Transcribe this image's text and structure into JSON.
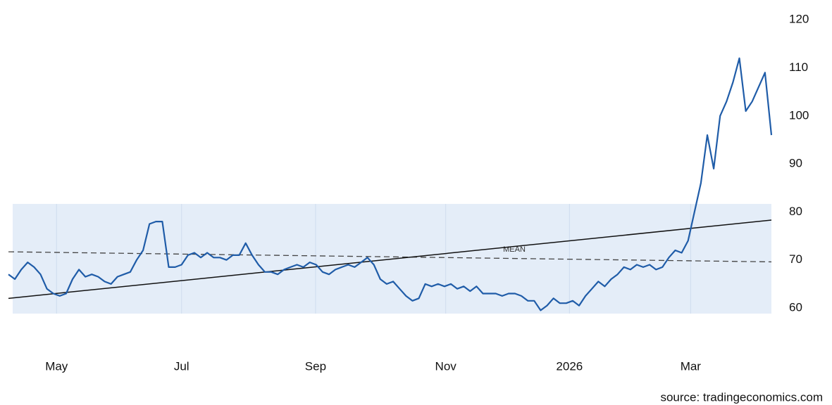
{
  "chart_data": {
    "type": "line",
    "series": [
      {
        "color": "#1f5ca8",
        "values": [
          67,
          66,
          68,
          69.5,
          68.5,
          67,
          64,
          63,
          62.5,
          63,
          66,
          68,
          66.5,
          67,
          66.5,
          65.5,
          65,
          66.5,
          67,
          67.5,
          70,
          72,
          77.5,
          78,
          78,
          68.5,
          68.5,
          69,
          71,
          71.5,
          70.5,
          71.5,
          70.5,
          70.5,
          70,
          71,
          71,
          73.5,
          71,
          69,
          67.5,
          67.5,
          67,
          68,
          68.5,
          69,
          68.5,
          69.5,
          69,
          67.5,
          67,
          68,
          68.5,
          69,
          68.5,
          69.5,
          70.5,
          69,
          66,
          65,
          65.5,
          64,
          62.5,
          61.5,
          62,
          65,
          64.5,
          65,
          64.5,
          65,
          64,
          64.5,
          63.5,
          64.5,
          63,
          63,
          63,
          62.5,
          63,
          63,
          62.5,
          61.5,
          61.5,
          59.5,
          60.5,
          62,
          61,
          61,
          61.5,
          60.5,
          62.5,
          64,
          65.5,
          64.5,
          66,
          67,
          68.5,
          68,
          69,
          68.5,
          69,
          68,
          68.5,
          70.5,
          72,
          71.5,
          74,
          80,
          86,
          96,
          89,
          100,
          103,
          107,
          112,
          101,
          103,
          106,
          109,
          96
        ]
      }
    ],
    "mean_line": {
      "label": "MEAN",
      "values": [
        71.7,
        69.6
      ]
    },
    "trend_line": {
      "values": [
        62,
        78.3
      ]
    },
    "xticks": [
      {
        "value": 7.5,
        "label": "May"
      },
      {
        "value": 27,
        "label": "Jul"
      },
      {
        "value": 47.9,
        "label": "Sep"
      },
      {
        "value": 68.2,
        "label": "Nov"
      },
      {
        "value": 87.5,
        "label": "2026"
      },
      {
        "value": 106.4,
        "label": "Mar"
      }
    ],
    "ylim": [
      58,
      122
    ],
    "yticks": [
      60,
      70,
      80,
      90,
      100,
      110,
      120
    ],
    "source": "source: tradingeconomics.com"
  }
}
